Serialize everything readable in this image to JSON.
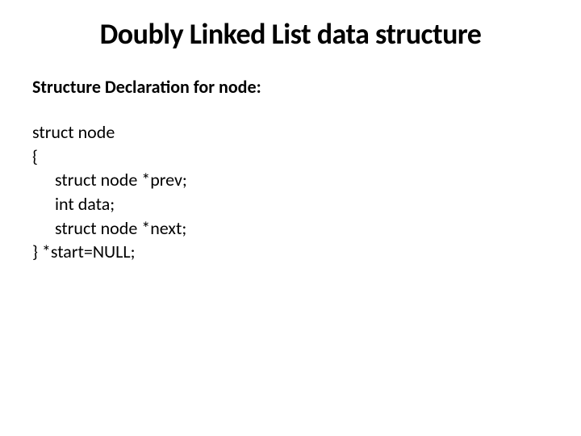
{
  "title": "Doubly Linked List data structure",
  "subtitle": "Structure Declaration for node:",
  "code": {
    "line1": "struct node",
    "line2": "{",
    "line3": "struct node *prev;",
    "line4": "int data;",
    "line5": "struct node *next;",
    "line6": "} *start=NULL;"
  },
  "colors": {
    "background": "#ffffff",
    "text": "#000000"
  },
  "typography": {
    "title_fontsize": 36,
    "subtitle_fontsize": 22,
    "code_fontsize": 22,
    "font_family": "Calibri"
  }
}
